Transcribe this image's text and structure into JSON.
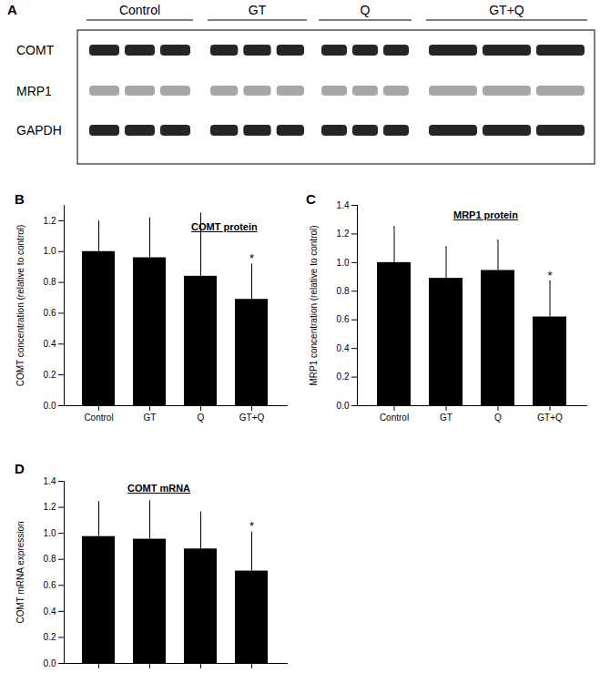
{
  "blot": {
    "panel": "A",
    "groups": [
      "Control",
      "GT",
      "Q",
      "GT+Q"
    ],
    "rows": [
      "COMT",
      "MRP1",
      "GAPDH"
    ]
  },
  "chart_data": [
    {
      "type": "bar",
      "panel": "B",
      "title": "COMT protein",
      "y_label": "COMT concentration (relative to control)",
      "categories": [
        "Control",
        "GT",
        "Q",
        "GT+Q"
      ],
      "values": [
        1.0,
        0.96,
        0.84,
        0.69
      ],
      "errors": [
        0.2,
        0.26,
        0.41,
        0.23
      ],
      "color": "#000000",
      "ylim": [
        0,
        1.3
      ],
      "yticks": [
        {
          "value": 0,
          "label": "0.0"
        },
        {
          "value": 0.2,
          "label": "0.2"
        },
        {
          "value": 0.4,
          "label": "0.4"
        },
        {
          "value": 0.6,
          "label": "0.6"
        },
        {
          "value": 0.8,
          "label": "0.8"
        },
        {
          "value": 1.0,
          "label": "1.0"
        },
        {
          "value": 1.2,
          "label": "1.2"
        }
      ],
      "annotations": [
        {
          "text": "*",
          "index": 3
        }
      ]
    },
    {
      "type": "bar",
      "panel": "C",
      "title": "MRP1 protein",
      "y_label": "MRP1 concentration (relative to control)",
      "categories": [
        "Control",
        "GT",
        "Q",
        "GT+Q"
      ],
      "values": [
        1.0,
        0.89,
        0.945,
        0.62
      ],
      "errors": [
        0.25,
        0.22,
        0.21,
        0.25
      ],
      "color": "#000000",
      "ylim": [
        0,
        1.4
      ],
      "yticks": [
        {
          "value": 0,
          "label": "0.0"
        },
        {
          "value": 0.2,
          "label": "0.2"
        },
        {
          "value": 0.4,
          "label": "0.4"
        },
        {
          "value": 0.6,
          "label": "0.6"
        },
        {
          "value": 0.8,
          "label": "0.8"
        },
        {
          "value": 1.0,
          "label": "1.0"
        },
        {
          "value": 1.2,
          "label": "1.2"
        },
        {
          "value": 1.4,
          "label": "1.4"
        }
      ],
      "annotations": [
        {
          "text": "*",
          "index": 3
        }
      ]
    },
    {
      "type": "bar",
      "panel": "D",
      "title": "COMT mRNA",
      "y_label": "COMT mRNA expression",
      "categories": [
        null,
        null,
        null,
        null
      ],
      "values": [
        0.975,
        0.955,
        0.88,
        0.71
      ],
      "errors": [
        0.27,
        0.295,
        0.285,
        0.3
      ],
      "color": "#000000",
      "ylim": [
        0,
        1.4
      ],
      "yticks": [
        {
          "value": 0,
          "label": "0.0"
        },
        {
          "value": 0.2,
          "label": "0.2"
        },
        {
          "value": 0.4,
          "label": "0.4"
        },
        {
          "value": 0.6,
          "label": "0.6"
        },
        {
          "value": 0.8,
          "label": "0.8"
        },
        {
          "value": 1.0,
          "label": "1.0"
        },
        {
          "value": 1.2,
          "label": "1.2"
        },
        {
          "value": 1.4,
          "label": "1.4"
        }
      ],
      "annotations": [
        {
          "text": "*",
          "index": 3
        }
      ]
    }
  ]
}
